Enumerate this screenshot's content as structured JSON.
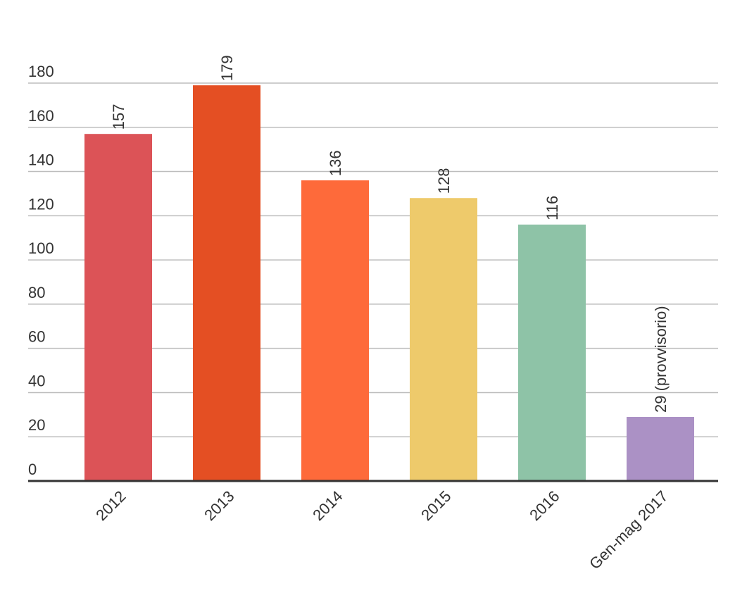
{
  "chart_data": {
    "type": "bar",
    "categories": [
      "2012",
      "2013",
      "2014",
      "2015",
      "2016",
      "Gen-mag 2017"
    ],
    "values": [
      157,
      179,
      136,
      128,
      116,
      29
    ],
    "value_labels": [
      "157",
      "179",
      "136",
      "128",
      "116",
      "29 (provvisorio)"
    ],
    "colors": [
      "#dc5357",
      "#e44f23",
      "#fe6a3a",
      "#eeca6b",
      "#8ec3a7",
      "#ab91c5"
    ],
    "ylim": [
      0,
      180
    ],
    "yticks": [
      0,
      20,
      40,
      60,
      80,
      100,
      120,
      140,
      160,
      180
    ],
    "grid": true
  }
}
